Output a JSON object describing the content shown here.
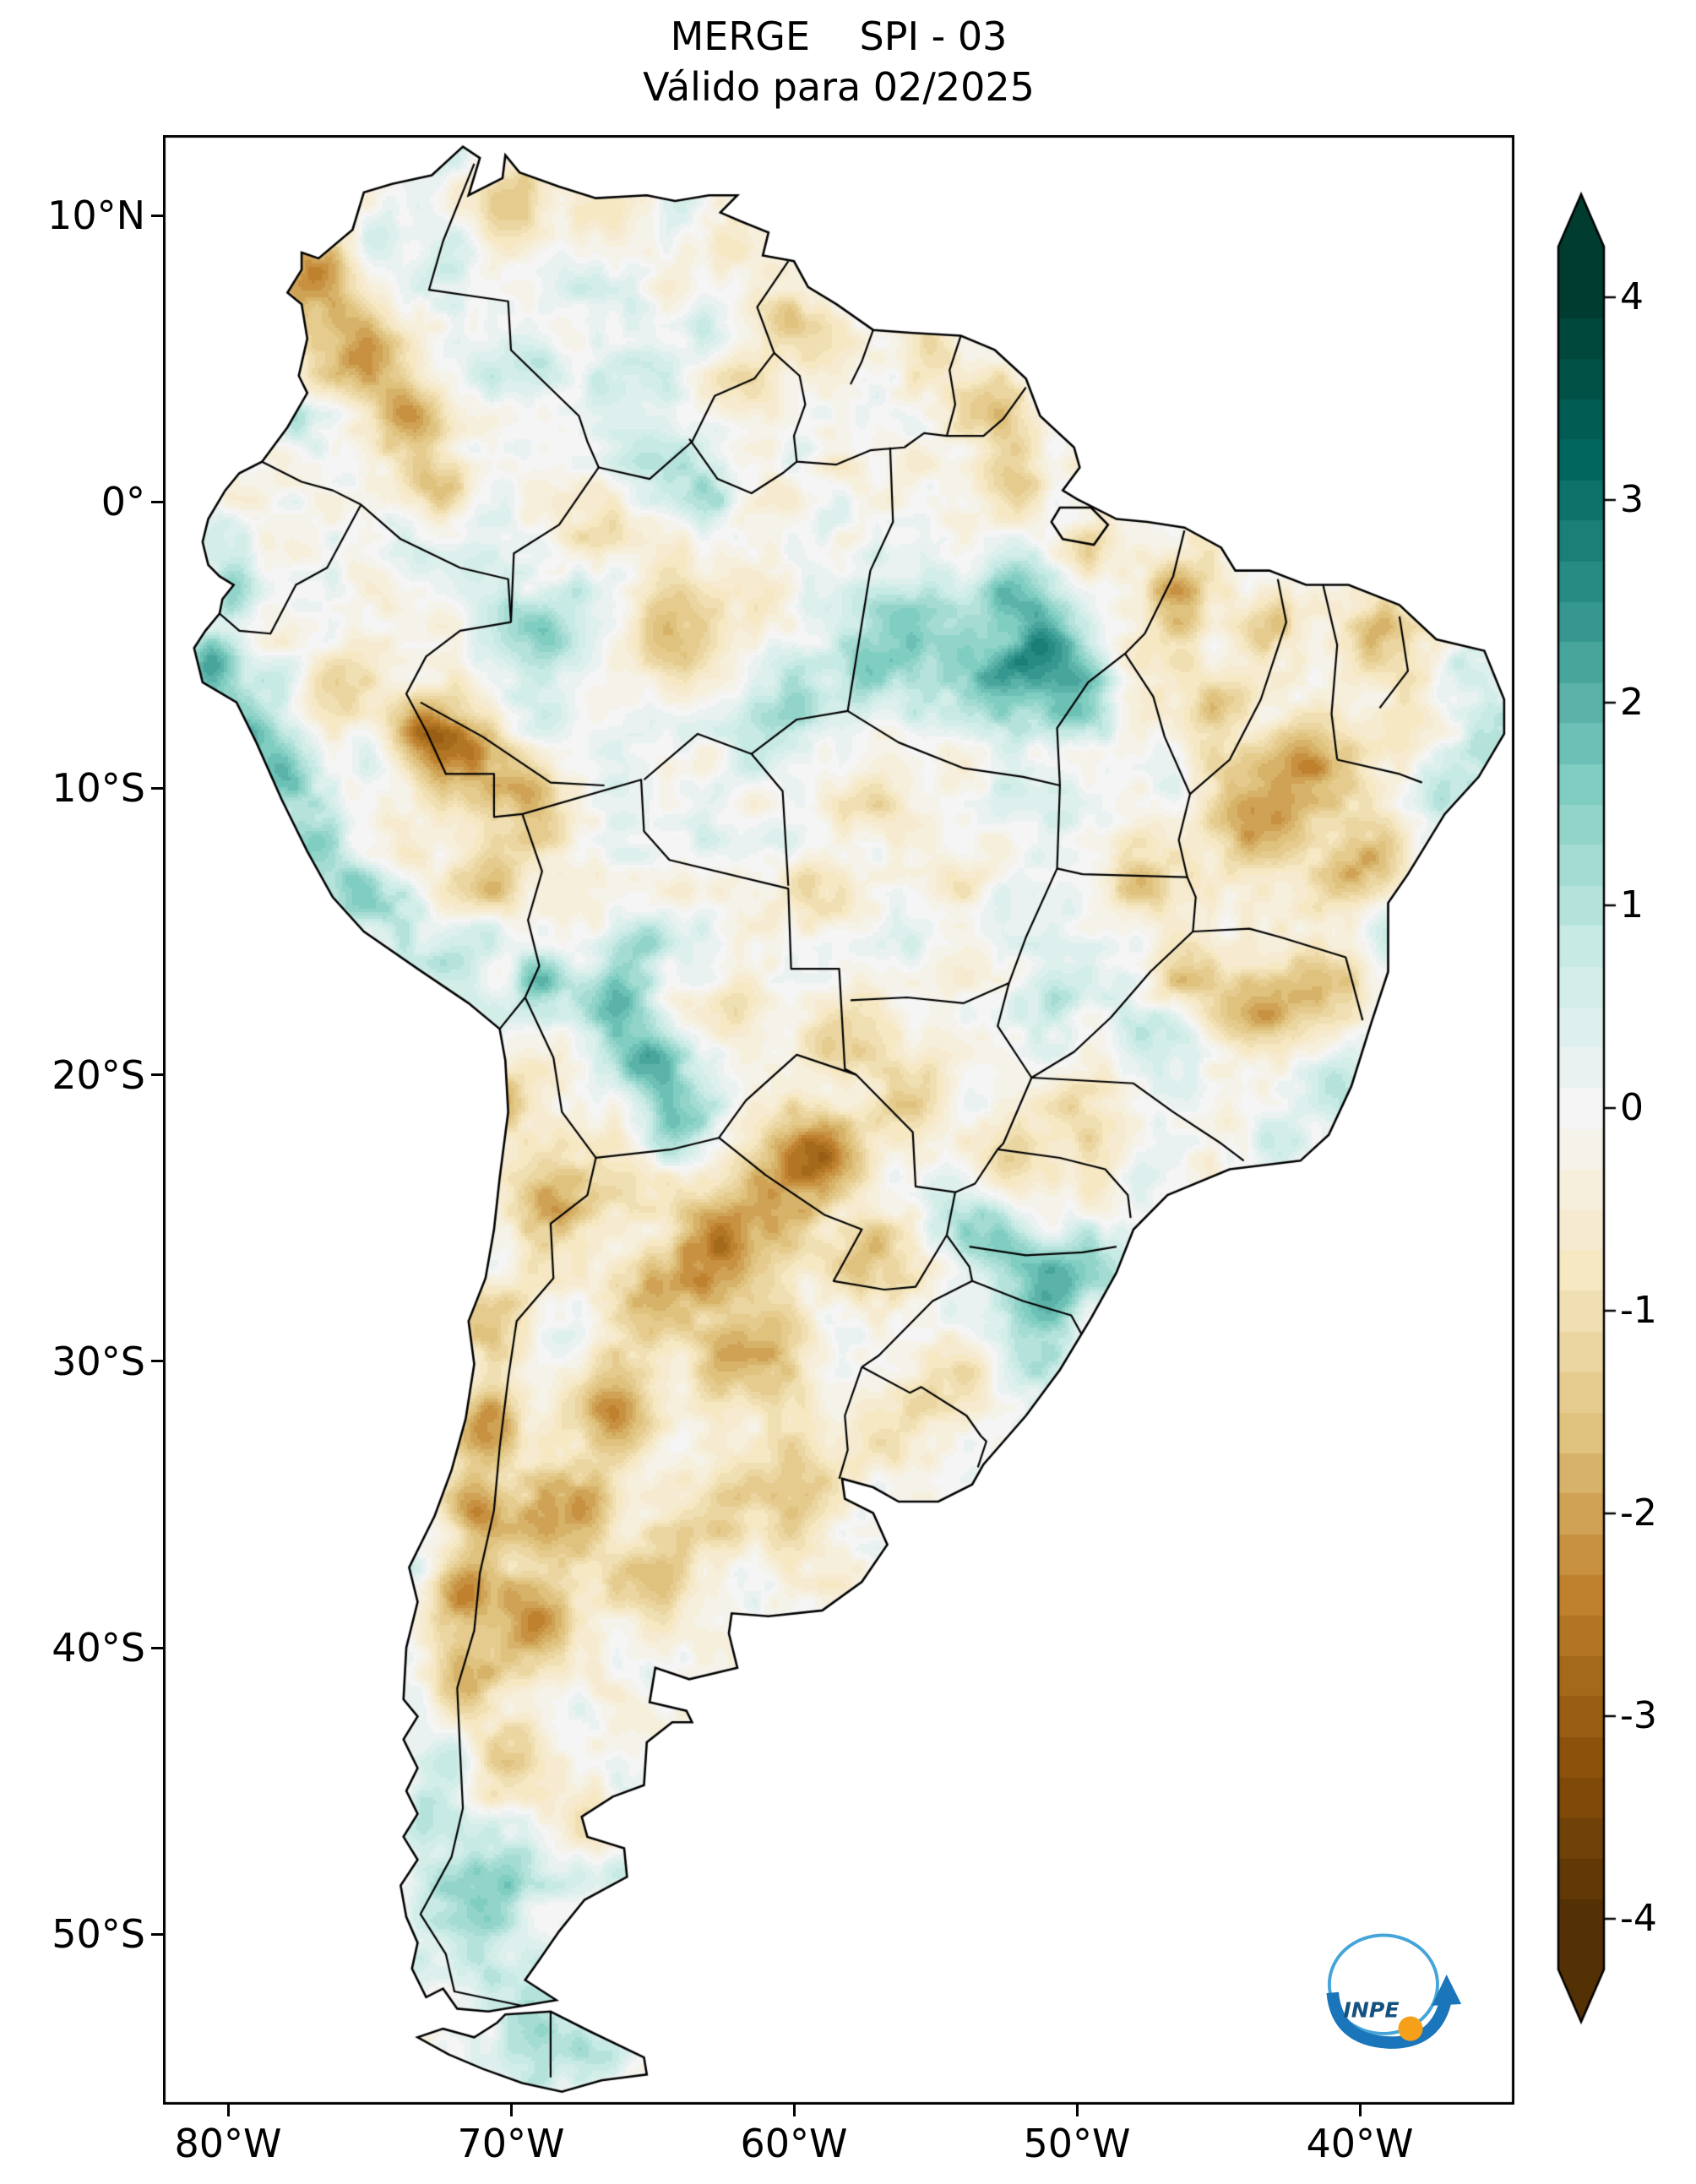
{
  "title": "MERGE    SPI - 03",
  "subtitle": "Válido para 02/2025",
  "axes": {
    "y_ticks": [
      {
        "label": "10°N",
        "lat": 10
      },
      {
        "label": "0°",
        "lat": 0
      },
      {
        "label": "10°S",
        "lat": -10
      },
      {
        "label": "20°S",
        "lat": -20
      },
      {
        "label": "30°S",
        "lat": -30
      },
      {
        "label": "40°S",
        "lat": -40
      },
      {
        "label": "50°S",
        "lat": -50
      }
    ],
    "x_ticks": [
      {
        "label": "80°W",
        "lon": -80
      },
      {
        "label": "70°W",
        "lon": -70
      },
      {
        "label": "60°W",
        "lon": -60
      },
      {
        "label": "50°W",
        "lon": -50
      },
      {
        "label": "40°W",
        "lon": -40
      }
    ]
  },
  "colorbar": {
    "ticks": [
      {
        "label": "4",
        "value": 4
      },
      {
        "label": "3",
        "value": 3
      },
      {
        "label": "2",
        "value": 2
      },
      {
        "label": "1",
        "value": 1
      },
      {
        "label": "0",
        "value": 0
      },
      {
        "label": "-1",
        "value": -1
      },
      {
        "label": "-2",
        "value": -2
      },
      {
        "label": "-3",
        "value": -3
      },
      {
        "label": "-4",
        "value": -4
      }
    ],
    "range": [
      -4,
      4
    ],
    "extend": "both",
    "stops": [
      "#543005",
      "#8c510a",
      "#bf812d",
      "#dfc27d",
      "#f6e8c3",
      "#f5f5f5",
      "#c7eae5",
      "#80cdc1",
      "#35978f",
      "#01665e",
      "#003c30"
    ]
  },
  "logo": {
    "text": "INPE",
    "blue": "#1b75bb",
    "light_blue": "#45a5d8",
    "orange": "#f6a01a",
    "navy": "#16527f"
  },
  "chart_data": {
    "type": "heatmap",
    "title": "MERGE    SPI - 03",
    "subtitle": "Válido para 02/2025",
    "region": "South America",
    "variable": "SPI-03",
    "value_range": [
      -4,
      4
    ],
    "colorbar_ticks": [
      4,
      3,
      2,
      1,
      0,
      -1,
      -2,
      -3,
      -4
    ],
    "lon_range": [
      -82.3,
      -34.5
    ],
    "lat_range": [
      -56.0,
      12.8
    ],
    "anomaly_format": [
      "lon",
      "lat",
      "sigma_deg",
      "spi_peak"
    ],
    "anomalies": [
      [
        -76.8,
        8.0,
        1.6,
        -2.0
      ],
      [
        -75.3,
        5.3,
        1.8,
        -2.2
      ],
      [
        -73.8,
        2.8,
        1.6,
        -2.0
      ],
      [
        -72.7,
        0.6,
        1.4,
        -1.8
      ],
      [
        -70.0,
        10.6,
        1.6,
        -1.4
      ],
      [
        -66.5,
        9.6,
        1.5,
        -0.9
      ],
      [
        -63.0,
        9.2,
        1.4,
        -1.0
      ],
      [
        -60.3,
        6.8,
        1.5,
        -1.3
      ],
      [
        -58.6,
        5.2,
        1.4,
        -1.0
      ],
      [
        -61.8,
        4.0,
        1.4,
        -1.0
      ],
      [
        -55.2,
        4.6,
        1.4,
        -1.0
      ],
      [
        -52.8,
        3.3,
        1.3,
        -1.1
      ],
      [
        -52.2,
        1.2,
        1.4,
        -1.3
      ],
      [
        -49.8,
        -1.6,
        1.3,
        -1.0
      ],
      [
        -46.5,
        -3.2,
        1.6,
        -1.4
      ],
      [
        -43.0,
        -4.0,
        1.4,
        -1.2
      ],
      [
        -39.8,
        -4.6,
        1.4,
        -1.4
      ],
      [
        -41.6,
        -9.0,
        1.9,
        -2.2
      ],
      [
        -43.8,
        -11.0,
        1.7,
        -1.8
      ],
      [
        -39.8,
        -12.8,
        1.5,
        -1.5
      ],
      [
        -44.8,
        -6.8,
        1.4,
        -1.3
      ],
      [
        -38.0,
        -7.8,
        1.3,
        -1.2
      ],
      [
        -66.8,
        0.0,
        1.4,
        -1.0
      ],
      [
        -64.2,
        -4.6,
        1.8,
        -1.3
      ],
      [
        -61.0,
        -3.2,
        1.4,
        -0.9
      ],
      [
        -71.6,
        -8.6,
        1.8,
        -2.4
      ],
      [
        -69.3,
        -10.3,
        1.5,
        -1.8
      ],
      [
        -73.3,
        -8.2,
        1.4,
        -1.6
      ],
      [
        -75.6,
        -6.4,
        1.3,
        -1.4
      ],
      [
        -70.4,
        -13.2,
        1.1,
        -1.1
      ],
      [
        -59.0,
        -13.8,
        1.4,
        -1.0
      ],
      [
        -57.0,
        -11.0,
        1.3,
        -0.8
      ],
      [
        -54.5,
        -13.0,
        1.4,
        -0.9
      ],
      [
        -58.3,
        -18.6,
        1.5,
        -1.4
      ],
      [
        -62.2,
        -17.8,
        1.4,
        -1.2
      ],
      [
        -46.2,
        -16.8,
        1.5,
        -1.3
      ],
      [
        -43.4,
        -17.6,
        1.4,
        -1.6
      ],
      [
        -41.0,
        -17.0,
        1.2,
        -1.1
      ],
      [
        -47.8,
        -13.5,
        1.3,
        -1.1
      ],
      [
        -49.6,
        -21.3,
        1.4,
        -1.2
      ],
      [
        -52.0,
        -23.0,
        1.3,
        -0.9
      ],
      [
        -55.5,
        -21.0,
        1.5,
        -1.5
      ],
      [
        -60.2,
        -23.8,
        2.0,
        -2.0
      ],
      [
        -62.8,
        -26.2,
        2.0,
        -2.2
      ],
      [
        -65.3,
        -28.3,
        1.8,
        -2.0
      ],
      [
        -58.6,
        -22.6,
        1.7,
        -1.8
      ],
      [
        -57.3,
        -26.6,
        1.6,
        -1.6
      ],
      [
        -61.3,
        -29.8,
        1.9,
        -2.0
      ],
      [
        -66.7,
        -31.8,
        1.7,
        -1.9
      ],
      [
        -68.3,
        -24.5,
        1.7,
        -1.7
      ],
      [
        -70.2,
        -20.8,
        1.3,
        -1.2
      ],
      [
        -70.5,
        -28.5,
        1.4,
        -1.9
      ],
      [
        -70.8,
        -32.0,
        1.3,
        -2.1
      ],
      [
        -71.3,
        -35.0,
        1.4,
        -2.3
      ],
      [
        -71.6,
        -38.0,
        1.4,
        -2.2
      ],
      [
        -71.4,
        -41.0,
        1.4,
        -1.7
      ],
      [
        -70.0,
        -43.8,
        1.5,
        -1.3
      ],
      [
        -67.8,
        -35.3,
        1.8,
        -1.7
      ],
      [
        -65.2,
        -37.8,
        1.7,
        -1.3
      ],
      [
        -69.3,
        -39.0,
        1.4,
        -1.8
      ],
      [
        -62.5,
        -35.0,
        1.7,
        -1.0
      ],
      [
        -59.5,
        -34.2,
        1.6,
        -0.9
      ],
      [
        -56.3,
        -32.6,
        1.5,
        -0.7
      ],
      [
        -54.2,
        -30.0,
        1.3,
        -0.8
      ],
      [
        -67.0,
        -46.0,
        1.4,
        -0.9
      ],
      [
        -80.6,
        -5.6,
        1.3,
        2.0
      ],
      [
        -79.3,
        -7.8,
        1.3,
        2.2
      ],
      [
        -78.0,
        -9.8,
        1.2,
        1.8
      ],
      [
        -76.8,
        -12.0,
        1.2,
        1.5
      ],
      [
        -75.4,
        -13.8,
        1.2,
        1.3
      ],
      [
        -80.0,
        -3.0,
        1.1,
        1.2
      ],
      [
        -80.2,
        -1.0,
        1.1,
        0.9
      ],
      [
        -77.9,
        2.8,
        1.0,
        0.8
      ],
      [
        -73.8,
        -14.8,
        1.2,
        1.4
      ],
      [
        -71.8,
        -15.8,
        1.1,
        1.2
      ],
      [
        -68.9,
        -16.8,
        1.2,
        1.4
      ],
      [
        -66.3,
        -17.6,
        1.4,
        2.4
      ],
      [
        -64.9,
        -19.8,
        1.3,
        2.0
      ],
      [
        -64.0,
        -21.8,
        1.2,
        1.6
      ],
      [
        -65.5,
        -15.5,
        1.2,
        1.2
      ],
      [
        -55.8,
        -4.6,
        2.0,
        1.3
      ],
      [
        -57.8,
        -6.0,
        1.6,
        1.0
      ],
      [
        -53.0,
        -6.2,
        1.8,
        1.5
      ],
      [
        -51.2,
        -5.2,
        1.5,
        1.8
      ],
      [
        -50.0,
        -7.0,
        1.4,
        1.4
      ],
      [
        -52.5,
        -3.0,
        1.5,
        1.1
      ],
      [
        -50.2,
        0.0,
        1.2,
        0.9
      ],
      [
        -64.8,
        1.5,
        1.6,
        1.1
      ],
      [
        -62.8,
        0.6,
        1.3,
        0.9
      ],
      [
        -67.2,
        3.8,
        1.3,
        0.9
      ],
      [
        -70.0,
        4.8,
        1.4,
        0.8
      ],
      [
        -64.0,
        10.2,
        1.3,
        1.1
      ],
      [
        -36.3,
        -6.0,
        1.2,
        1.1
      ],
      [
        -35.4,
        -8.6,
        1.0,
        0.9
      ],
      [
        -36.8,
        -9.8,
        1.0,
        0.8
      ],
      [
        -38.8,
        -15.2,
        1.1,
        0.9
      ],
      [
        -41.3,
        -20.3,
        1.2,
        1.0
      ],
      [
        -43.0,
        -22.4,
        1.0,
        0.8
      ],
      [
        -52.6,
        -26.3,
        1.5,
        1.7
      ],
      [
        -50.9,
        -27.6,
        1.3,
        1.3
      ],
      [
        -54.2,
        -25.2,
        1.2,
        1.0
      ],
      [
        -49.3,
        -26.6,
        1.1,
        1.0
      ],
      [
        -51.3,
        -29.9,
        1.1,
        0.8
      ],
      [
        -47.8,
        -18.4,
        1.2,
        0.8
      ],
      [
        -50.8,
        -17.2,
        1.2,
        0.8
      ],
      [
        -56.5,
        -15.5,
        1.2,
        0.7
      ],
      [
        -60.6,
        -7.8,
        1.3,
        0.9
      ],
      [
        -68.6,
        -4.6,
        1.4,
        1.0
      ],
      [
        -70.8,
        -3.0,
        1.2,
        0.8
      ],
      [
        -59.0,
        -0.5,
        1.3,
        0.8
      ],
      [
        -73.0,
        -45.8,
        1.3,
        0.9
      ],
      [
        -71.9,
        -49.0,
        1.5,
        1.5
      ],
      [
        -69.9,
        -48.0,
        1.4,
        1.0
      ],
      [
        -70.9,
        -51.3,
        1.4,
        1.2
      ],
      [
        -68.7,
        -51.6,
        1.2,
        0.9
      ],
      [
        -69.3,
        -53.8,
        1.4,
        1.2
      ],
      [
        -66.9,
        -54.4,
        1.2,
        1.0
      ],
      [
        -67.3,
        -49.9,
        1.2,
        0.9
      ],
      [
        -72.3,
        -44.3,
        1.2,
        0.8
      ],
      [
        -64.5,
        -41.5,
        1.2,
        0.6
      ]
    ]
  }
}
